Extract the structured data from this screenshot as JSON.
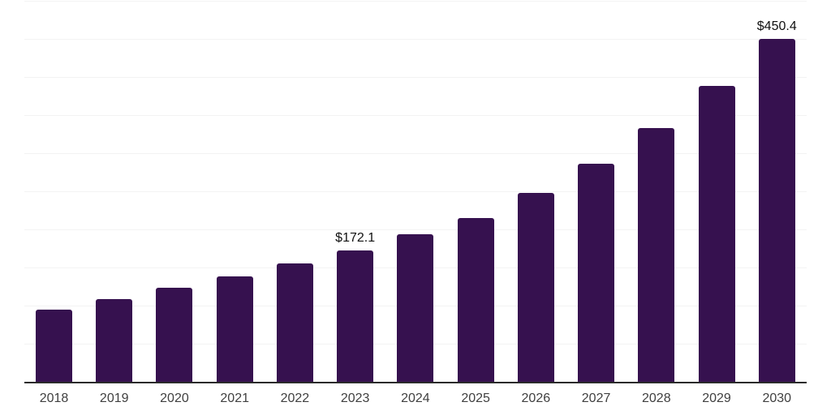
{
  "chart_data": {
    "type": "bar",
    "title": "",
    "xlabel": "",
    "ylabel": "",
    "categories": [
      "2018",
      "2019",
      "2020",
      "2021",
      "2022",
      "2023",
      "2024",
      "2025",
      "2026",
      "2027",
      "2028",
      "2029",
      "2030"
    ],
    "values": [
      95.0,
      108.6,
      123.8,
      138.3,
      155.3,
      172.1,
      193.6,
      214.9,
      247.9,
      286.2,
      333.0,
      388.3,
      450.4
    ],
    "data_labels": {
      "2023": "$172.1",
      "2030": "$450.4"
    },
    "ylim": [
      0,
      500
    ],
    "gridline_step": 50,
    "grid": "horizontal-only",
    "legend": "none",
    "colors": {
      "bar": "#36114F",
      "background": "#ffffff",
      "gridline": "#f3f3f3",
      "axis_line": "#2b2b2b",
      "tick_label": "#404040",
      "value_label": "#111111"
    }
  }
}
